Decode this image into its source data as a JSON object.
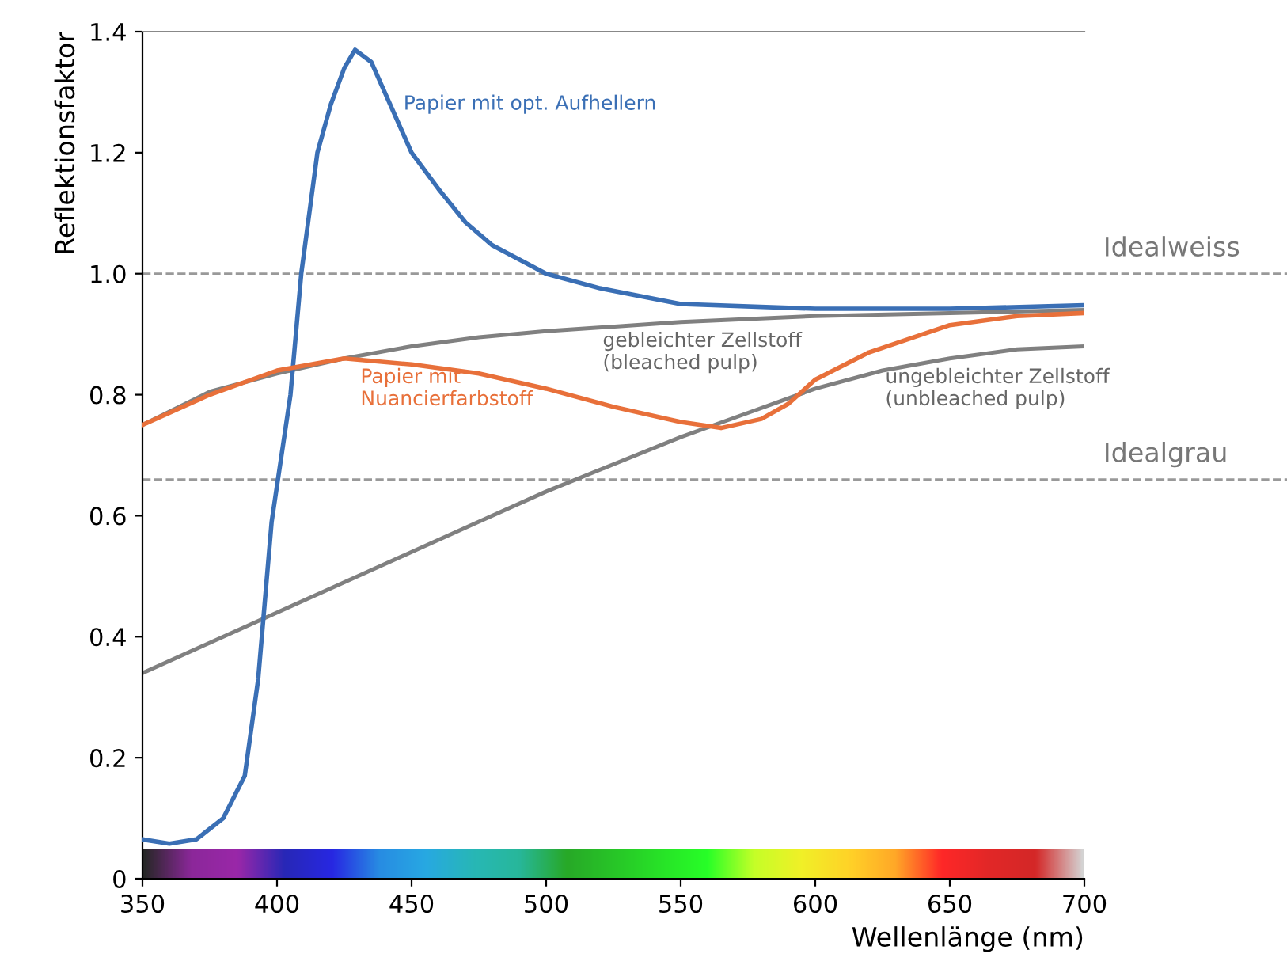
{
  "chart_data": {
    "type": "line",
    "xlabel": "Wellenlänge (nm)",
    "ylabel": "Reflektionsfaktor",
    "xlim": [
      350,
      700
    ],
    "xticks": [
      350,
      400,
      450,
      500,
      550,
      600,
      650,
      700
    ],
    "ylim": [
      0,
      1.4
    ],
    "yticks": [
      0,
      0.2,
      0.4,
      0.6,
      0.8,
      {
        "value": 1,
        "label": "1.0"
      },
      1.2,
      1.4
    ],
    "grid": false,
    "legend": false,
    "marker": "none",
    "line_style": "solid",
    "series": [
      {
        "name": "Papier mit opt. Aufhellern",
        "color": "#3a6fb5",
        "x": [
          350,
          360,
          370,
          380,
          388,
          393,
          398,
          405,
          409,
          415,
          420,
          425,
          429,
          435,
          440,
          450,
          460,
          470,
          480,
          500,
          520,
          550,
          600,
          650,
          700
        ],
        "values": [
          0.065,
          0.058,
          0.065,
          0.1,
          0.17,
          0.33,
          0.59,
          0.8,
          1.0,
          1.2,
          1.28,
          1.34,
          1.37,
          1.35,
          1.3,
          1.2,
          1.14,
          1.085,
          1.047,
          1.0,
          0.976,
          0.95,
          0.942,
          0.942,
          0.948
        ]
      },
      {
        "name": "Papier mit\nNuancierfarbstoff",
        "color": "#e8703a",
        "x": [
          350,
          375,
          400,
          425,
          450,
          475,
          500,
          525,
          550,
          565,
          580,
          590,
          600,
          620,
          650,
          675,
          700
        ],
        "values": [
          0.75,
          0.8,
          0.84,
          0.86,
          0.85,
          0.835,
          0.81,
          0.78,
          0.755,
          0.745,
          0.76,
          0.785,
          0.825,
          0.87,
          0.915,
          0.93,
          0.935
        ]
      },
      {
        "name": "gebleichter Zellstoff\n(bleached pulp)",
        "color": "#808080",
        "x": [
          350,
          375,
          400,
          425,
          450,
          475,
          500,
          550,
          600,
          650,
          700
        ],
        "values": [
          0.75,
          0.805,
          0.835,
          0.86,
          0.88,
          0.895,
          0.905,
          0.92,
          0.93,
          0.935,
          0.94
        ]
      },
      {
        "name": "ungebleichter Zellstoff\n(unbleached pulp)",
        "color": "#808080",
        "x": [
          350,
          375,
          400,
          425,
          450,
          475,
          500,
          525,
          550,
          575,
          600,
          625,
          650,
          675,
          700
        ],
        "values": [
          0.34,
          0.39,
          0.44,
          0.49,
          0.54,
          0.59,
          0.64,
          0.685,
          0.73,
          0.77,
          0.81,
          0.84,
          0.86,
          0.875,
          0.88
        ]
      }
    ],
    "ref_lines": [
      {
        "axis": "y",
        "value": 1.0,
        "label": "Idealweiss",
        "color": "#999999",
        "line_style": "dashed"
      },
      {
        "axis": "y",
        "value": 0.66,
        "label": "Idealgrau",
        "color": "#999999",
        "line_style": "dashed"
      }
    ]
  }
}
